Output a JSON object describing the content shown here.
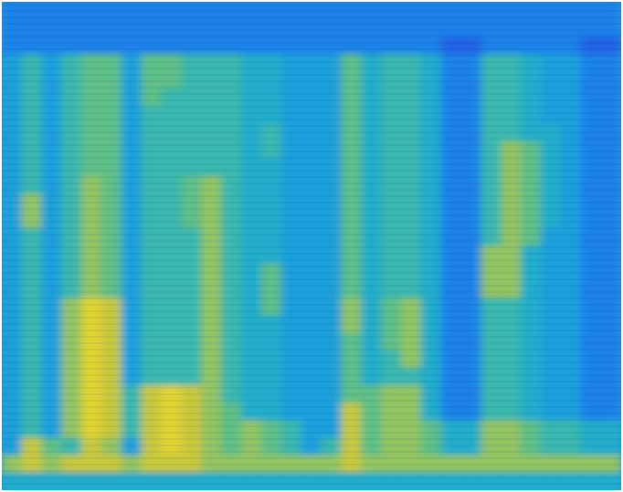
{
  "chart_data": {
    "type": "heatmap",
    "tick_labels": false,
    "color_range": [
      0,
      10
    ],
    "cells": [
      [
        2,
        2,
        2,
        2,
        2,
        2,
        2,
        2,
        2,
        2,
        2,
        2,
        2,
        2,
        2,
        2,
        2,
        2,
        2,
        2,
        2,
        2,
        2,
        2,
        2,
        2,
        2,
        2,
        2,
        2,
        2
      ],
      [
        2,
        2,
        2,
        2,
        2,
        2,
        2,
        2,
        2,
        2,
        2,
        2,
        2,
        2,
        2,
        2,
        2,
        2,
        2,
        2,
        2,
        2,
        2,
        2,
        2,
        2,
        2,
        2,
        2,
        2,
        2
      ],
      [
        2,
        2,
        2,
        2,
        2,
        2,
        2,
        2,
        2,
        2,
        2,
        2,
        2,
        2,
        2,
        2,
        2,
        2,
        2,
        2,
        2,
        2,
        1,
        1,
        2,
        2,
        2,
        2,
        2,
        1,
        1
      ],
      [
        3,
        5,
        3,
        5,
        6,
        6,
        3,
        6,
        6,
        5,
        5,
        5,
        4,
        4,
        3,
        3,
        3,
        6,
        4,
        5,
        5,
        4,
        2,
        2,
        5,
        5,
        4,
        3,
        3,
        2,
        2
      ],
      [
        3,
        5,
        3,
        5,
        6,
        6,
        3,
        6,
        6,
        5,
        5,
        5,
        4,
        4,
        3,
        3,
        3,
        6,
        4,
        5,
        5,
        4,
        2,
        2,
        5,
        5,
        4,
        3,
        3,
        2,
        2
      ],
      [
        3,
        5,
        3,
        5,
        6,
        6,
        3,
        6,
        5,
        5,
        5,
        5,
        4,
        4,
        3,
        3,
        3,
        6,
        4,
        5,
        5,
        4,
        2,
        2,
        5,
        5,
        4,
        3,
        3,
        2,
        2
      ],
      [
        3,
        5,
        3,
        5,
        6,
        6,
        3,
        5,
        5,
        5,
        5,
        5,
        4,
        4,
        3,
        3,
        3,
        6,
        4,
        5,
        5,
        4,
        2,
        2,
        5,
        5,
        4,
        3,
        3,
        2,
        2
      ],
      [
        3,
        5,
        3,
        5,
        6,
        6,
        3,
        5,
        5,
        5,
        5,
        5,
        4,
        5,
        3,
        3,
        3,
        6,
        4,
        5,
        5,
        4,
        2,
        2,
        5,
        5,
        4,
        4,
        3,
        2,
        2
      ],
      [
        3,
        5,
        3,
        5,
        6,
        6,
        3,
        5,
        5,
        5,
        5,
        5,
        4,
        5,
        3,
        3,
        3,
        6,
        4,
        5,
        5,
        4,
        2,
        2,
        5,
        7,
        6,
        4,
        3,
        2,
        2
      ],
      [
        3,
        5,
        3,
        5,
        6,
        6,
        3,
        5,
        5,
        5,
        5,
        5,
        4,
        4,
        3,
        3,
        3,
        6,
        4,
        5,
        5,
        4,
        2,
        2,
        5,
        7,
        6,
        4,
        3,
        2,
        2
      ],
      [
        3,
        5,
        3,
        5,
        7,
        6,
        3,
        5,
        5,
        6,
        7,
        5,
        4,
        4,
        3,
        3,
        3,
        6,
        4,
        5,
        5,
        4,
        2,
        2,
        5,
        7,
        6,
        4,
        3,
        2,
        2
      ],
      [
        3,
        7,
        3,
        5,
        7,
        6,
        3,
        5,
        5,
        6,
        7,
        5,
        4,
        4,
        3,
        3,
        3,
        6,
        4,
        5,
        5,
        4,
        2,
        2,
        5,
        7,
        6,
        4,
        3,
        2,
        2
      ],
      [
        3,
        7,
        3,
        5,
        7,
        6,
        3,
        5,
        5,
        6,
        7,
        5,
        4,
        4,
        3,
        3,
        3,
        6,
        4,
        5,
        5,
        4,
        2,
        2,
        5,
        7,
        6,
        4,
        3,
        2,
        2
      ],
      [
        3,
        5,
        3,
        5,
        7,
        6,
        3,
        5,
        5,
        5,
        7,
        5,
        4,
        4,
        3,
        3,
        3,
        6,
        4,
        5,
        5,
        4,
        2,
        2,
        5,
        7,
        6,
        3,
        3,
        2,
        2
      ],
      [
        3,
        5,
        3,
        5,
        7,
        6,
        3,
        5,
        5,
        5,
        7,
        5,
        4,
        4,
        3,
        3,
        3,
        6,
        4,
        5,
        5,
        4,
        2,
        2,
        7,
        7,
        4,
        3,
        3,
        2,
        2
      ],
      [
        3,
        5,
        3,
        5,
        7,
        6,
        3,
        5,
        5,
        5,
        7,
        5,
        4,
        6,
        3,
        3,
        3,
        6,
        4,
        5,
        5,
        4,
        2,
        2,
        7,
        7,
        4,
        3,
        3,
        2,
        2
      ],
      [
        3,
        5,
        3,
        5,
        7,
        6,
        3,
        5,
        5,
        5,
        7,
        5,
        4,
        6,
        3,
        3,
        3,
        6,
        4,
        5,
        5,
        4,
        2,
        2,
        7,
        7,
        4,
        3,
        3,
        2,
        2
      ],
      [
        3,
        5,
        3,
        7,
        9,
        8,
        3,
        5,
        5,
        5,
        7,
        5,
        4,
        6,
        3,
        3,
        3,
        7,
        4,
        6,
        7,
        4,
        2,
        2,
        5,
        5,
        4,
        3,
        3,
        2,
        2
      ],
      [
        3,
        5,
        3,
        7,
        9,
        8,
        3,
        5,
        5,
        5,
        7,
        5,
        4,
        4,
        3,
        3,
        3,
        7,
        4,
        6,
        7,
        4,
        2,
        2,
        5,
        5,
        4,
        3,
        3,
        2,
        2
      ],
      [
        3,
        5,
        3,
        7,
        9,
        8,
        3,
        5,
        5,
        5,
        7,
        5,
        4,
        4,
        3,
        3,
        3,
        6,
        4,
        6,
        7,
        4,
        2,
        2,
        5,
        5,
        4,
        3,
        3,
        2,
        2
      ],
      [
        3,
        5,
        3,
        7,
        9,
        8,
        3,
        5,
        5,
        5,
        7,
        5,
        4,
        4,
        3,
        3,
        3,
        6,
        4,
        5,
        7,
        4,
        2,
        2,
        5,
        5,
        4,
        3,
        3,
        2,
        2
      ],
      [
        3,
        5,
        3,
        7,
        9,
        8,
        3,
        5,
        5,
        5,
        7,
        5,
        4,
        4,
        3,
        3,
        3,
        6,
        4,
        5,
        5,
        4,
        2,
        2,
        5,
        5,
        4,
        3,
        3,
        2,
        2
      ],
      [
        3,
        5,
        3,
        7,
        9,
        8,
        5,
        8,
        9,
        8,
        7,
        5,
        4,
        4,
        3,
        3,
        3,
        6,
        6,
        7,
        7,
        4,
        2,
        2,
        5,
        5,
        4,
        3,
        3,
        2,
        2
      ],
      [
        3,
        5,
        3,
        7,
        9,
        8,
        5,
        8,
        9,
        8,
        7,
        6,
        4,
        4,
        3,
        3,
        3,
        8,
        6,
        7,
        7,
        4,
        2,
        2,
        5,
        5,
        4,
        3,
        3,
        2,
        2
      ],
      [
        3,
        5,
        3,
        7,
        9,
        8,
        5,
        8,
        9,
        8,
        7,
        6,
        7,
        6,
        5,
        3,
        3,
        8,
        6,
        7,
        7,
        6,
        4,
        4,
        7,
        7,
        6,
        5,
        5,
        4,
        4
      ],
      [
        3,
        8,
        6,
        5,
        8,
        7,
        3,
        8,
        9,
        8,
        7,
        6,
        7,
        6,
        5,
        3,
        5,
        8,
        6,
        7,
        7,
        6,
        4,
        4,
        7,
        7,
        6,
        5,
        5,
        4,
        4
      ],
      [
        7,
        8,
        7,
        8,
        8,
        8,
        7,
        8,
        8,
        8,
        7,
        7,
        7,
        7,
        7,
        7,
        7,
        8,
        7,
        7,
        7,
        7,
        7,
        7,
        7,
        7,
        7,
        7,
        7,
        7,
        7
      ],
      [
        4,
        4,
        4,
        4,
        4,
        4,
        4,
        4,
        4,
        4,
        4,
        4,
        4,
        4,
        4,
        4,
        4,
        4,
        4,
        4,
        4,
        4,
        4,
        4,
        4,
        4,
        4,
        4,
        4,
        4,
        4
      ]
    ]
  }
}
